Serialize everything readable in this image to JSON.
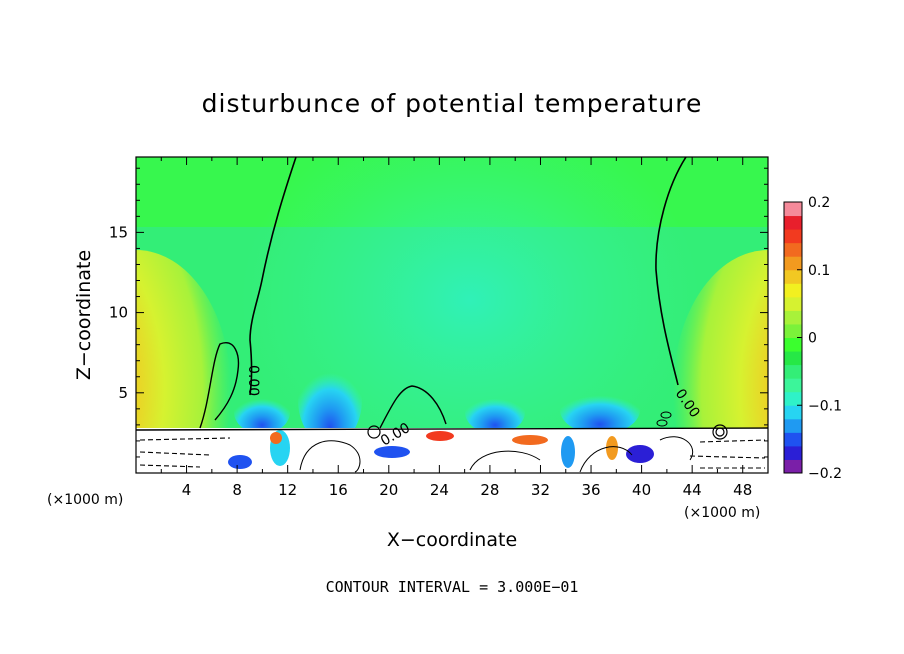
{
  "chart_data": {
    "type": "heatmap",
    "title": "disturbunce of potential temperature",
    "xlabel": "X−coordinate",
    "ylabel": "Z−coordinate",
    "x_unit": "(×1000 m)",
    "x_unit_right": "(×1000 m)",
    "xlim": [
      0,
      50
    ],
    "ylim": [
      0,
      19.7
    ],
    "x_ticks": [
      4,
      8,
      12,
      16,
      20,
      24,
      28,
      32,
      36,
      40,
      44,
      48
    ],
    "y_ticks": [
      5,
      10,
      15
    ],
    "colorbar": {
      "range": [
        -0.2,
        0.2
      ],
      "tick_values": [
        0.2,
        0.1,
        0,
        -0.1,
        -0.2
      ],
      "tick_labels": [
        "0.2",
        "0.1",
        "0",
        "−0.1",
        "−0.2"
      ],
      "colors": [
        "#7a1fa8",
        "#2b1fd6",
        "#1f52f0",
        "#1f9af2",
        "#27d4f2",
        "#2ff2c8",
        "#3cf59a",
        "#33ee77",
        "#26e846",
        "#3bff2e",
        "#7bf23a",
        "#a8f23a",
        "#d6f230",
        "#f2f020",
        "#f2c822",
        "#f29a1f",
        "#f26a1f",
        "#f23a1f",
        "#e81f2c",
        "#f58a9a"
      ]
    },
    "contour_labels": [
      "0.00",
      "0.00",
      "0.00"
    ],
    "contour_interval_text": "CONTOUR INTERVAL = 3.000E−01"
  }
}
